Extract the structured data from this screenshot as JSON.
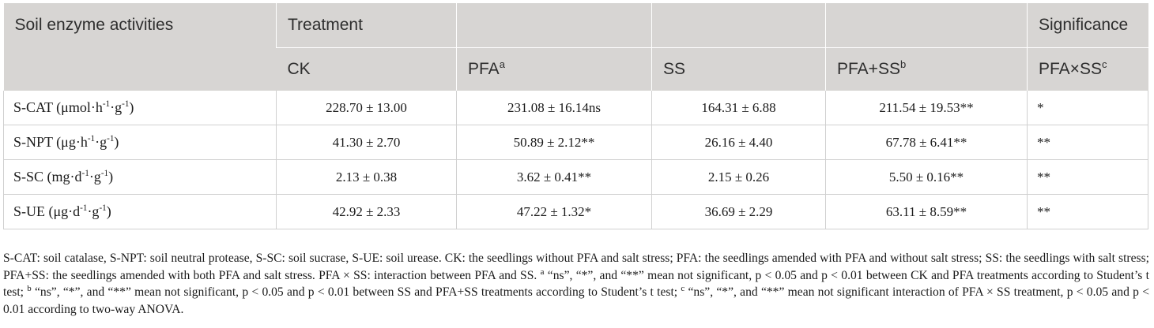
{
  "header": {
    "col_label": "Soil enzyme activities",
    "group_treatment": "Treatment",
    "group_significance": "Significance",
    "sub": [
      {
        "text": "CK",
        "sup": ""
      },
      {
        "text": "PFA",
        "sup": "a"
      },
      {
        "text": "SS",
        "sup": ""
      },
      {
        "text": "PFA+SS",
        "sup": "b"
      },
      {
        "text": "PFA×SS",
        "sup": "c"
      }
    ]
  },
  "rows": [
    {
      "label_pre": "S-CAT (μmol·h",
      "label_sup1": "-1",
      "label_mid": "·g",
      "label_sup2": "-1",
      "label_post": ")",
      "values": [
        "228.70 ± 13.00",
        "231.08 ± 16.14ns",
        "164.31 ± 6.88",
        "211.54 ± 19.53**",
        "*"
      ]
    },
    {
      "label_pre": "S-NPT (μg·h",
      "label_sup1": "-1",
      "label_mid": "·g",
      "label_sup2": "-1",
      "label_post": ")",
      "values": [
        "41.30 ± 2.70",
        "50.89 ± 2.12**",
        "26.16 ± 4.40",
        "67.78 ± 6.41**",
        "**"
      ]
    },
    {
      "label_pre": "S-SC (mg·d",
      "label_sup1": "-1",
      "label_mid": "·g",
      "label_sup2": "-1",
      "label_post": ")",
      "values": [
        "2.13 ± 0.38",
        "3.62 ± 0.41**",
        "2.15 ± 0.26",
        "5.50 ± 0.16**",
        "**"
      ]
    },
    {
      "label_pre": "S-UE (μg·d",
      "label_sup1": "-1",
      "label_mid": "·g",
      "label_sup2": "-1",
      "label_post": ")",
      "values": [
        "42.92 ± 2.33",
        "47.22 ± 1.32*",
        "36.69 ± 2.29",
        "63.11 ± 8.59**",
        "**"
      ]
    }
  ],
  "footnote": {
    "main": "S-CAT: soil catalase, S-NPT: soil neutral protease, S-SC: soil sucrase, S-UE: soil urease. CK: the seedlings without PFA and salt stress; PFA: the seedlings amended with PFA and without salt stress; SS: the seedlings with salt stress; PFA+SS: the seedlings amended with both PFA and salt stress. PFA × SS: interaction between PFA and SS.",
    "a_mark": "a",
    "a_text": "“ns”, “*”, and “**” mean not significant, p < 0.05 and p < 0.01 between CK and PFA treatments according to Student’s t test;",
    "b_mark": "b",
    "b_text": "“ns”, “*”, and “**” mean not significant, p < 0.05 and p < 0.01 between SS and PFA+SS treatments according to Student’s t test;",
    "c_mark": "c",
    "c_text": "“ns”, “*”, and “**” mean not significant interaction of PFA × SS treatment, p < 0.05 and p < 0.01 according to two-way ANOVA."
  },
  "colors": {
    "header_bg": "#d7d5d3",
    "header_text": "#2e2e2e",
    "grid_line": "#d0d0d0"
  },
  "chart_data": {
    "type": "table",
    "columns": [
      "Soil enzyme activities",
      "CK",
      "PFA",
      "SS",
      "PFA+SS",
      "PFA×SS"
    ],
    "rows": [
      [
        "S-CAT (μmol·h-1·g-1)",
        "228.70 ± 13.00",
        "231.08 ± 16.14ns",
        "164.31 ± 6.88",
        "211.54 ± 19.53**",
        "*"
      ],
      [
        "S-NPT (μg·h-1·g-1)",
        "41.30 ± 2.70",
        "50.89 ± 2.12**",
        "26.16 ± 4.40",
        "67.78 ± 6.41**",
        "**"
      ],
      [
        "S-SC (mg·d-1·g-1)",
        "2.13 ± 0.38",
        "3.62 ± 0.41**",
        "2.15 ± 0.26",
        "5.50 ± 0.16**",
        "**"
      ],
      [
        "S-UE (μg·d-1·g-1)",
        "42.92 ± 2.33",
        "47.22 ± 1.32*",
        "36.69 ± 2.29",
        "63.11 ± 8.59**",
        "**"
      ]
    ]
  }
}
